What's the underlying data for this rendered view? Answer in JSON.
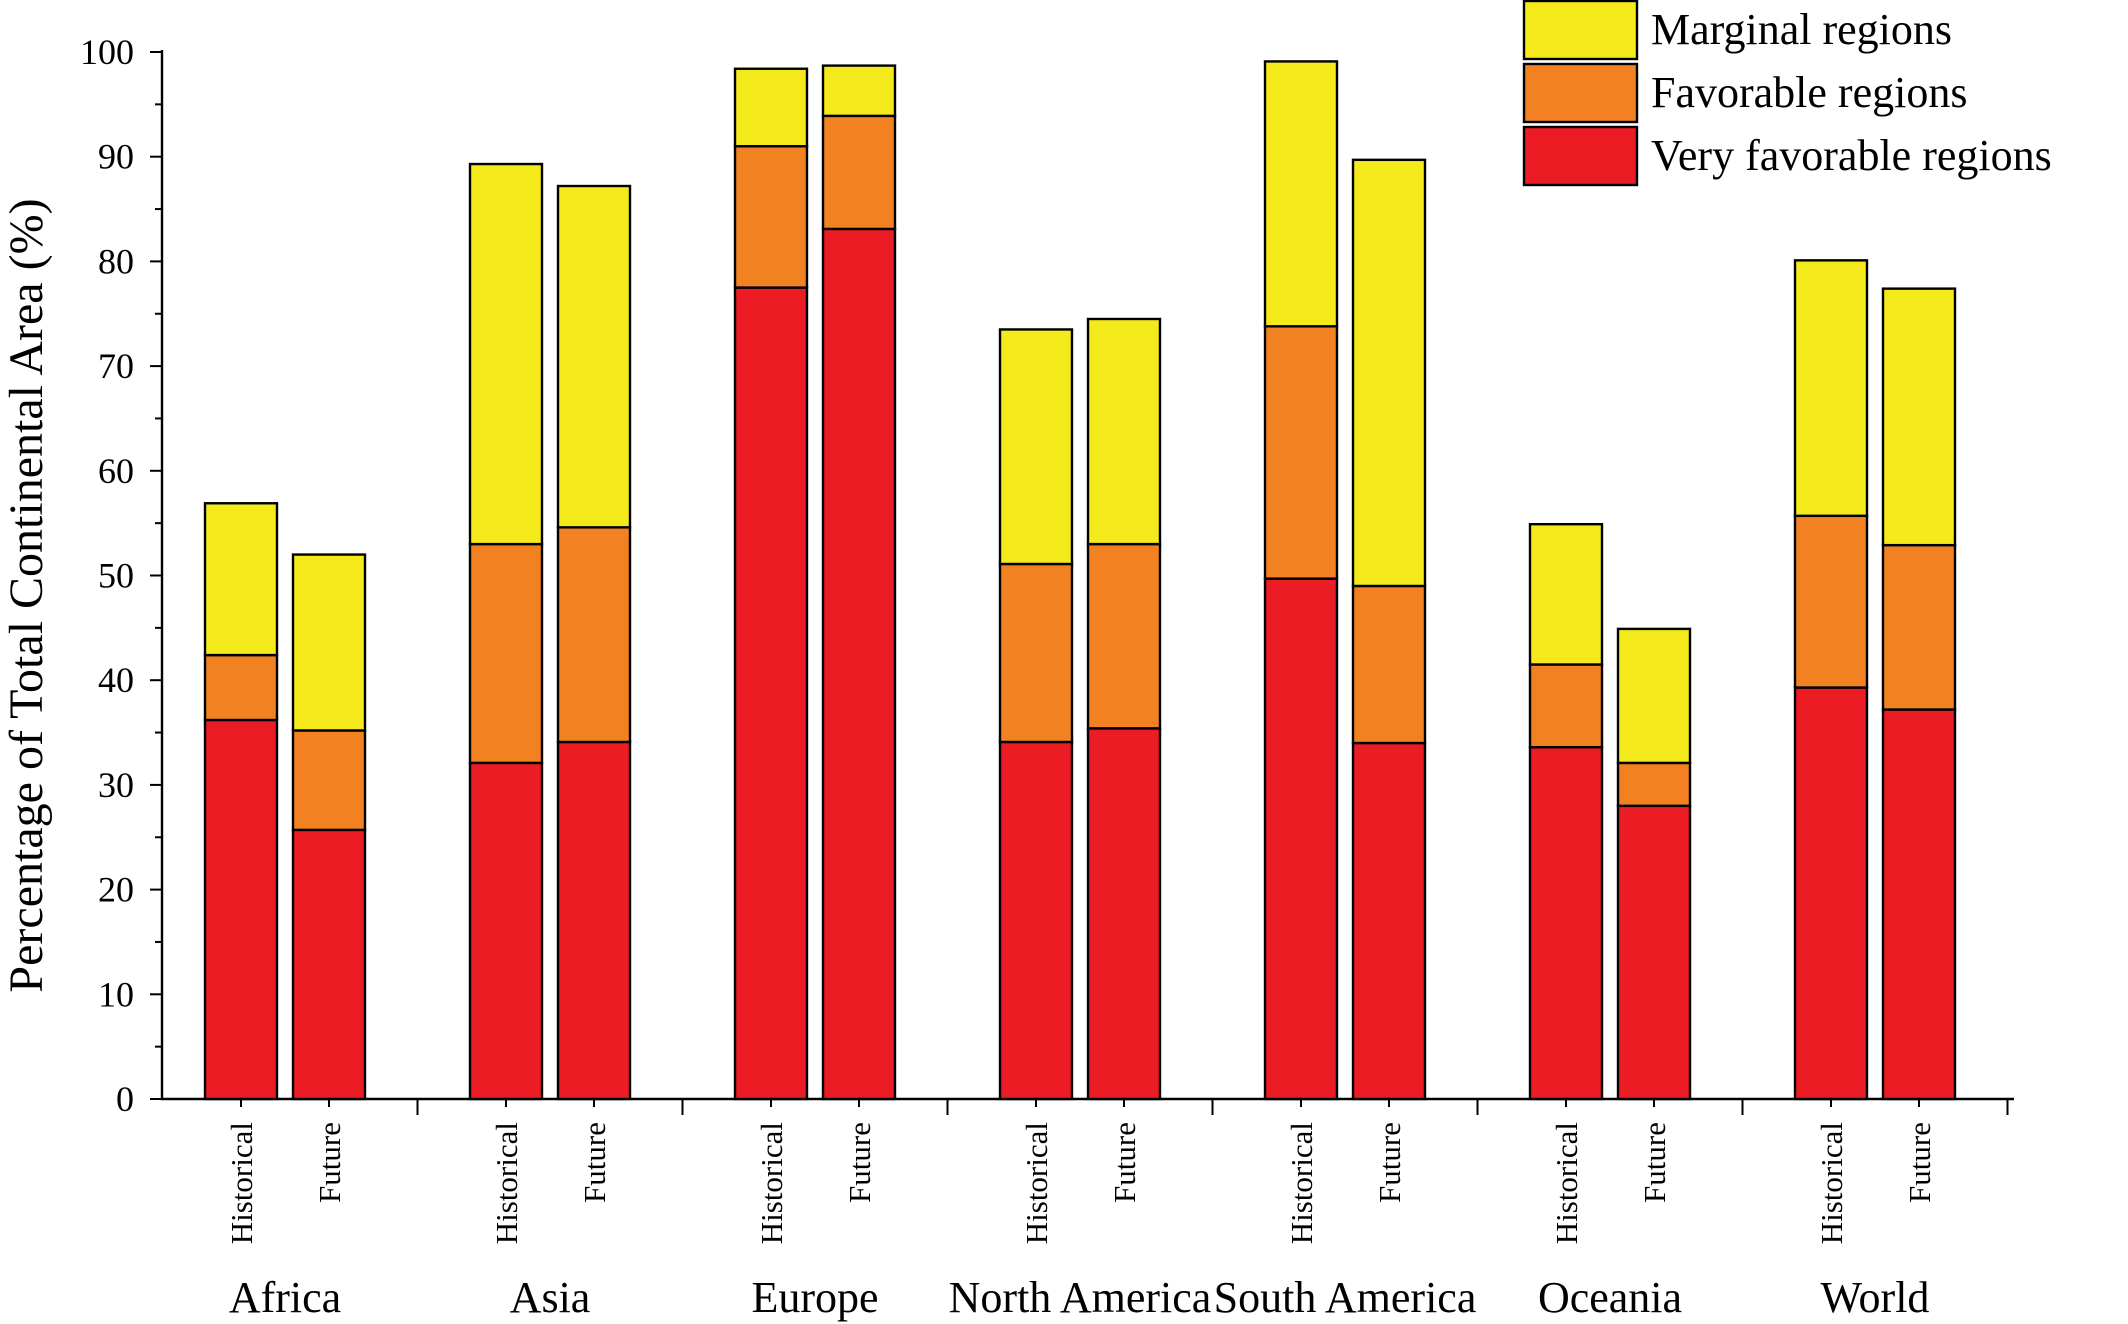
{
  "chart_data": {
    "type": "bar",
    "stacked": true,
    "ylabel": "Percentage of Total Continental Area (%)",
    "xlabel": "",
    "ylim": [
      0,
      100
    ],
    "ytick_step": 10,
    "yticks": [
      "0",
      "10",
      "20",
      "30",
      "40",
      "50",
      "60",
      "70",
      "80",
      "90",
      "100"
    ],
    "grid": false,
    "legend_position": "top-right",
    "scenarios": [
      "Historical",
      "Future"
    ],
    "categories": [
      "Africa",
      "Asia",
      "Europe",
      "North America",
      "South America",
      "Oceania",
      "World"
    ],
    "series": [
      {
        "name": "Very favorable regions",
        "color": "#ec1c24",
        "values": [
          [
            36.2,
            25.7
          ],
          [
            32.1,
            34.1
          ],
          [
            77.5,
            83.1
          ],
          [
            34.1,
            35.4
          ],
          [
            49.7,
            34.0
          ],
          [
            33.6,
            28.0
          ],
          [
            39.3,
            37.2
          ]
        ]
      },
      {
        "name": "Favorable regions",
        "color": "#f28121",
        "values": [
          [
            6.2,
            9.5
          ],
          [
            20.9,
            20.5
          ],
          [
            13.5,
            10.8
          ],
          [
            17.0,
            17.6
          ],
          [
            24.1,
            15.0
          ],
          [
            7.9,
            4.1
          ],
          [
            16.4,
            15.7
          ]
        ]
      },
      {
        "name": "Marginal regions",
        "color": "#f4ea1b",
        "values": [
          [
            14.5,
            16.8
          ],
          [
            36.3,
            32.6
          ],
          [
            7.4,
            4.8
          ],
          [
            22.4,
            21.5
          ],
          [
            25.3,
            40.7
          ],
          [
            13.4,
            12.8
          ],
          [
            24.4,
            24.5
          ]
        ]
      }
    ],
    "legend_order": [
      "Marginal regions",
      "Favorable regions",
      "Very favorable regions"
    ]
  }
}
